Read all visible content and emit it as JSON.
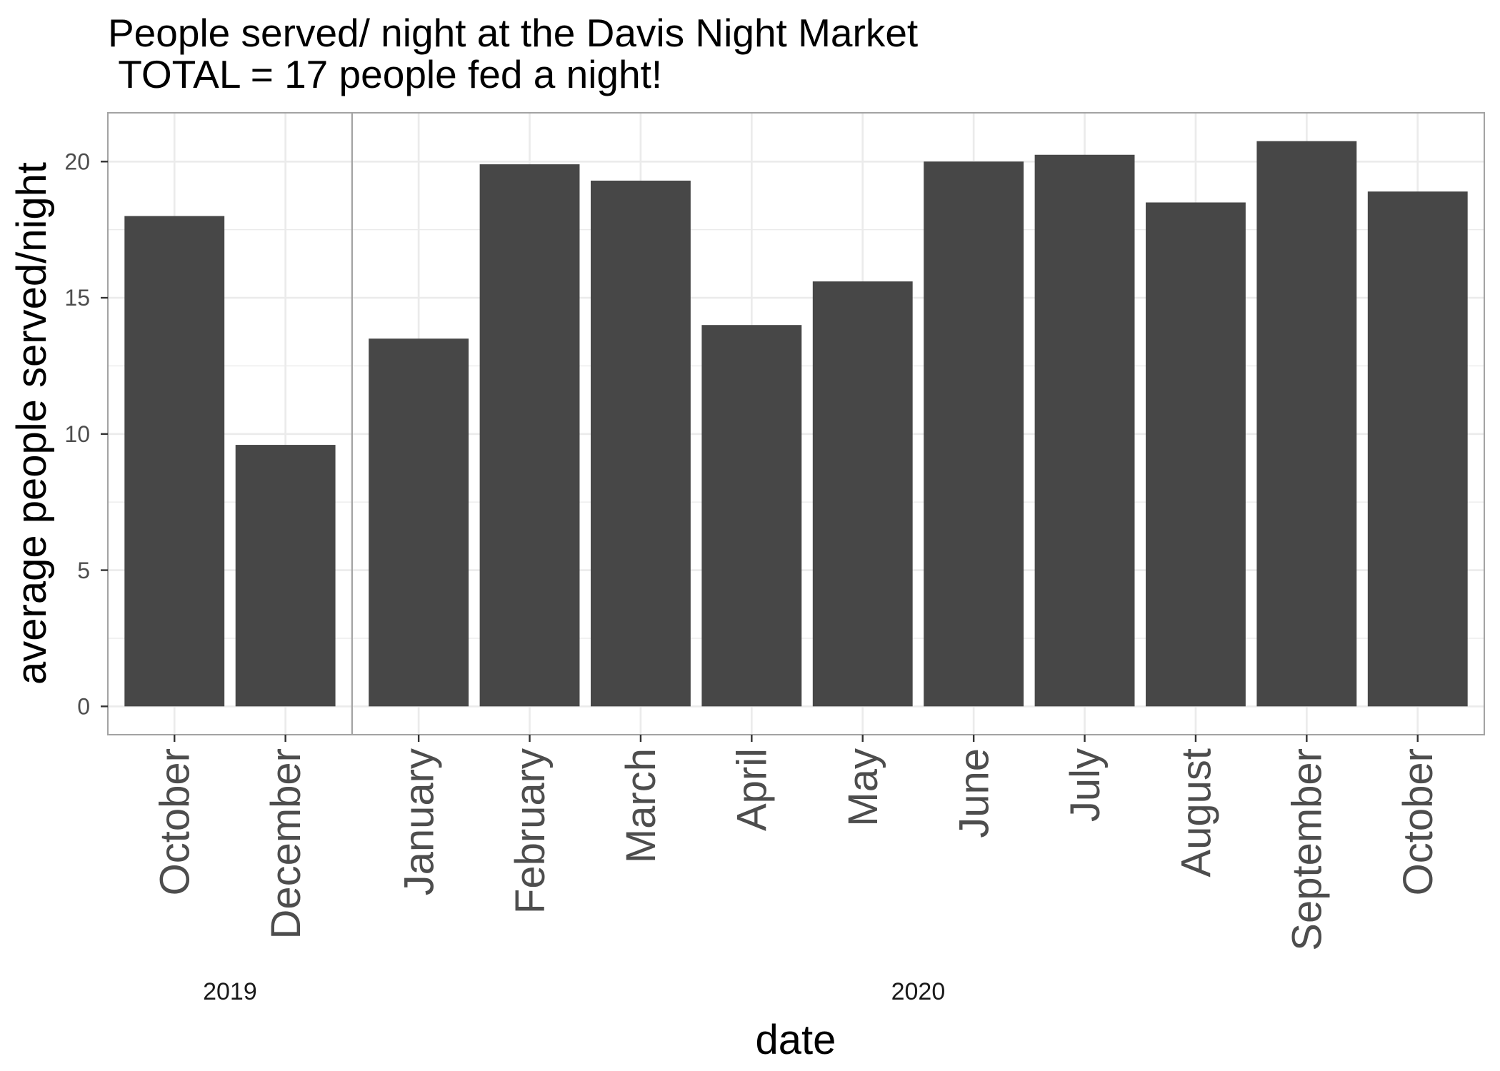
{
  "chart_data": {
    "type": "bar",
    "title": [
      "People served/ night at the Davis Night Market",
      " TOTAL = 17 people fed a night!"
    ],
    "xlabel": "date",
    "ylabel": "average people served/night",
    "ylim": [
      -1.04,
      21.79
    ],
    "yticks": [
      0,
      5,
      10,
      15,
      20
    ],
    "grid": true,
    "facets": [
      {
        "label": "2019",
        "categories": [
          "October",
          "December"
        ],
        "values": [
          18,
          9.6
        ]
      },
      {
        "label": "2020",
        "categories": [
          "January",
          "February",
          "March",
          "April",
          "May",
          "June",
          "July",
          "August",
          "September",
          "October"
        ],
        "values": [
          13.5,
          19.9,
          19.3,
          14,
          15.6,
          20,
          20.25,
          18.5,
          20.75,
          18.9
        ]
      }
    ],
    "colors": {
      "bar": "#474747",
      "grid": "#EBEBEB",
      "border": "#A3A3A3",
      "axis": "#333333"
    }
  }
}
